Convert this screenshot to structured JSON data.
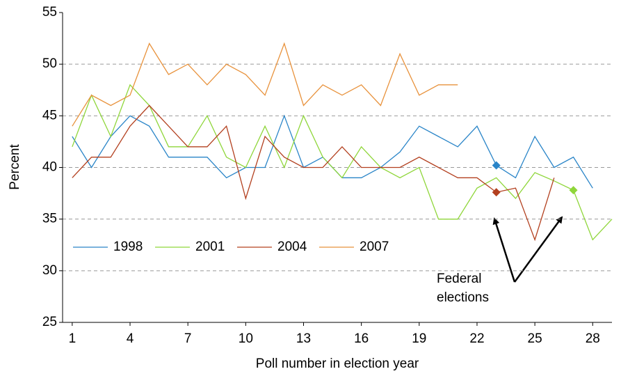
{
  "chart_data": {
    "type": "line",
    "x_label": "Poll number in election year",
    "y_label": "Percent",
    "xlim": [
      0.5,
      29
    ],
    "xticks": [
      1,
      4,
      7,
      10,
      13,
      16,
      19,
      22,
      25,
      28
    ],
    "ylim": [
      25,
      55
    ],
    "yticks": [
      25,
      30,
      35,
      40,
      45,
      50,
      55
    ],
    "grid": true,
    "legend": "left",
    "annotation": [
      "Federal",
      "elections"
    ],
    "series": [
      {
        "name": "1998",
        "color": "#2a85c8",
        "markers": [
          22
        ],
        "x": [
          1,
          2,
          3,
          4,
          5,
          6,
          7,
          8,
          9,
          10,
          11,
          12,
          13,
          14,
          15,
          16,
          17,
          18,
          19,
          20,
          21,
          22,
          23,
          24,
          25,
          26,
          27,
          28
        ],
        "values": [
          43,
          40,
          43,
          45,
          44,
          41,
          41,
          41,
          39,
          40,
          40,
          45,
          40,
          41,
          39,
          39,
          40,
          41.5,
          44,
          43,
          42,
          44,
          40.2,
          39,
          43,
          40,
          41,
          38
        ]
      },
      {
        "name": "2001",
        "color": "#8fd63a",
        "markers": [
          26
        ],
        "x": [
          1,
          2,
          3,
          4,
          5,
          6,
          7,
          8,
          9,
          10,
          11,
          12,
          13,
          14,
          15,
          16,
          17,
          18,
          19,
          20,
          21,
          22,
          23,
          24,
          25,
          26,
          27,
          28,
          29
        ],
        "values": [
          42,
          47,
          43,
          48,
          46,
          42,
          42,
          45,
          41,
          40,
          44,
          40,
          45,
          41,
          39,
          42,
          40,
          39,
          40,
          35,
          35,
          38,
          39,
          37,
          39.5,
          38.7,
          37.8,
          33,
          35
        ]
      },
      {
        "name": "2004",
        "color": "#b3401f",
        "markers": [
          22
        ],
        "x": [
          1,
          2,
          3,
          4,
          5,
          6,
          7,
          8,
          9,
          10,
          11,
          12,
          13,
          14,
          15,
          16,
          17,
          18,
          19,
          20,
          21,
          22,
          23,
          24,
          25,
          26
        ],
        "values": [
          39,
          41,
          41,
          44,
          46,
          44,
          42,
          42,
          44,
          37,
          43,
          41,
          40,
          40,
          42,
          40,
          40,
          40,
          41,
          40,
          39,
          39,
          37.6,
          38,
          33,
          39
        ]
      },
      {
        "name": "2007",
        "color": "#e8923c",
        "markers": [],
        "x": [
          1,
          2,
          3,
          4,
          5,
          6,
          7,
          8,
          9,
          10,
          11,
          12,
          13,
          14,
          15,
          16,
          17,
          18,
          19,
          20,
          21
        ],
        "values": [
          44,
          47,
          46,
          47,
          52,
          49,
          50,
          48,
          50,
          49,
          47,
          52,
          46,
          48,
          47,
          48,
          46,
          51,
          47,
          48,
          48
        ]
      }
    ]
  }
}
